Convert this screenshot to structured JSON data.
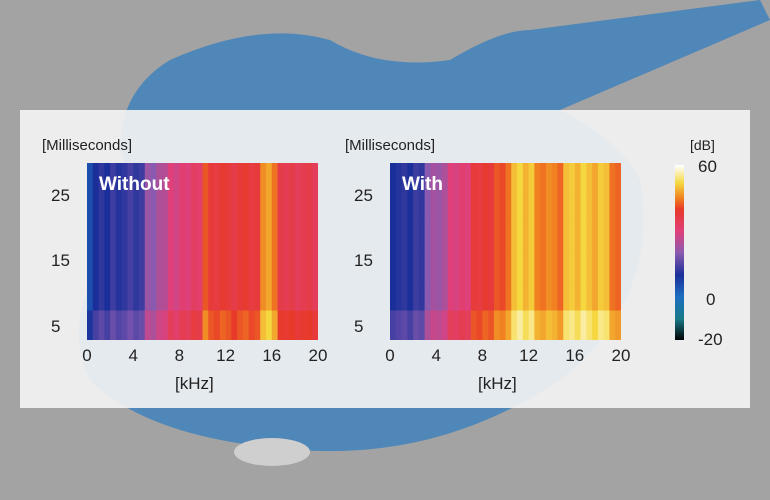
{
  "chart_data": [
    {
      "type": "heatmap",
      "label": "Without",
      "xlabel": "[kHz]",
      "ylabel": "[Milliseconds]",
      "xlim": [
        0,
        20
      ],
      "ylim": [
        3,
        30
      ],
      "xticks": [
        "0",
        "4",
        "8",
        "12",
        "16",
        "20"
      ],
      "yticks": [
        "5",
        "15",
        "25"
      ],
      "x_bin_khz": 0.5,
      "column_levels_db": [
        5,
        10,
        12,
        10,
        13,
        11,
        12,
        14,
        12,
        13,
        22,
        20,
        24,
        25,
        30,
        28,
        31,
        30,
        33,
        32,
        42,
        38,
        37,
        39,
        38,
        36,
        38,
        39,
        37,
        38,
        46,
        48,
        44,
        36,
        35,
        36,
        34,
        35,
        36,
        34
      ]
    },
    {
      "type": "heatmap",
      "label": "With",
      "xlabel": "[kHz]",
      "ylabel": "[Milliseconds]",
      "xlim": [
        0,
        20
      ],
      "ylim": [
        3,
        30
      ],
      "xticks": [
        "0",
        "4",
        "8",
        "12",
        "16",
        "20"
      ],
      "yticks": [
        "5",
        "15",
        "25"
      ],
      "x_bin_khz": 0.5,
      "column_levels_db": [
        10,
        11,
        12,
        10,
        13,
        12,
        20,
        23,
        22,
        24,
        30,
        29,
        31,
        30,
        38,
        37,
        39,
        38,
        42,
        41,
        44,
        50,
        52,
        49,
        51,
        45,
        44,
        46,
        45,
        43,
        50,
        51,
        49,
        52,
        50,
        48,
        51,
        50,
        44,
        43
      ]
    }
  ],
  "colorbar": {
    "unit": "[dB]",
    "min": -20,
    "max": 60,
    "ticks": [
      "60",
      "0",
      "-20"
    ],
    "stops": [
      [
        -20,
        "#000000"
      ],
      [
        -10,
        "#1a7a8a"
      ],
      [
        0,
        "#1d6fc0"
      ],
      [
        10,
        "#1a2f9a"
      ],
      [
        20,
        "#8a5ab0"
      ],
      [
        30,
        "#e0407a"
      ],
      [
        40,
        "#e83a2a"
      ],
      [
        45,
        "#f08020"
      ],
      [
        52,
        "#f5d840"
      ],
      [
        60,
        "#ffffff"
      ]
    ]
  }
}
